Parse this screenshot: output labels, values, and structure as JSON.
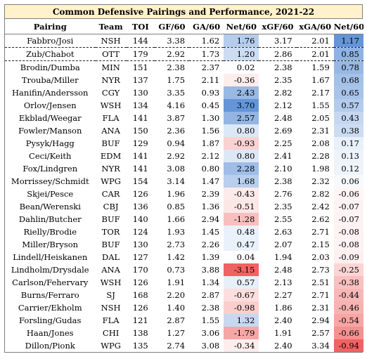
{
  "title": "Common Defensive Pairings and Performance, 2021-22",
  "columns": [
    "Pairing",
    "Team",
    "TOI",
    "GF/60",
    "GA/60",
    "Net/60",
    "xGF/60",
    "xGA/60",
    "Net/60"
  ],
  "colors": {
    "positive": "#5b8fd6",
    "negative": "#f05a5a",
    "neutral": "#ffffff",
    "title_bg": "#fff2cc"
  },
  "rows": [
    {
      "pairing": "Fabbro/Josi",
      "team": "NSH",
      "toi": "144",
      "gf": "3.38",
      "ga": "1.62",
      "net": "1.76",
      "xgf": "3.17",
      "xga": "2.01",
      "xnet": "1.17"
    },
    {
      "pairing": "Zub/Chabot",
      "team": "OTT",
      "toi": "179",
      "gf": "2.92",
      "ga": "1.73",
      "net": "1.20",
      "xgf": "2.86",
      "xga": "2.01",
      "xnet": "0.85"
    },
    {
      "pairing": "Brodin/Dumba",
      "team": "MIN",
      "toi": "151",
      "gf": "2.38",
      "ga": "2.37",
      "net": "0.02",
      "xgf": "2.38",
      "xga": "1.59",
      "xnet": "0.78"
    },
    {
      "pairing": "Trouba/Miller",
      "team": "NYR",
      "toi": "137",
      "gf": "1.75",
      "ga": "2.11",
      "net": "-0.36",
      "xgf": "2.35",
      "xga": "1.67",
      "xnet": "0.68"
    },
    {
      "pairing": "Hanifin/Andersson",
      "team": "CGY",
      "toi": "130",
      "gf": "3.35",
      "ga": "0.93",
      "net": "2.43",
      "xgf": "2.82",
      "xga": "2.17",
      "xnet": "0.65"
    },
    {
      "pairing": "Orlov/Jensen",
      "team": "WSH",
      "toi": "134",
      "gf": "4.16",
      "ga": "0.45",
      "net": "3.70",
      "xgf": "2.12",
      "xga": "1.55",
      "xnet": "0.57"
    },
    {
      "pairing": "Ekblad/Weegar",
      "team": "FLA",
      "toi": "141",
      "gf": "3.87",
      "ga": "1.30",
      "net": "2.57",
      "xgf": "2.48",
      "xga": "2.05",
      "xnet": "0.43"
    },
    {
      "pairing": "Fowler/Manson",
      "team": "ANA",
      "toi": "150",
      "gf": "2.36",
      "ga": "1.56",
      "net": "0.80",
      "xgf": "2.69",
      "xga": "2.31",
      "xnet": "0.38"
    },
    {
      "pairing": "Pysyk/Hagg",
      "team": "BUF",
      "toi": "129",
      "gf": "0.94",
      "ga": "1.87",
      "net": "-0.93",
      "xgf": "2.25",
      "xga": "2.08",
      "xnet": "0.17"
    },
    {
      "pairing": "Ceci/Keith",
      "team": "EDM",
      "toi": "141",
      "gf": "2.92",
      "ga": "2.12",
      "net": "0.80",
      "xgf": "2.41",
      "xga": "2.28",
      "xnet": "0.13"
    },
    {
      "pairing": "Fox/Lindgren",
      "team": "NYR",
      "toi": "141",
      "gf": "3.08",
      "ga": "0.80",
      "net": "2.28",
      "xgf": "2.10",
      "xga": "1.98",
      "xnet": "0.12"
    },
    {
      "pairing": "Morrissey/Schmidt",
      "team": "WPG",
      "toi": "154",
      "gf": "3.14",
      "ga": "1.47",
      "net": "1.68",
      "xgf": "2.38",
      "xga": "2.32",
      "xnet": "0.06"
    },
    {
      "pairing": "Skjei/Pesce",
      "team": "CAR",
      "toi": "126",
      "gf": "1.96",
      "ga": "2.39",
      "net": "-0.43",
      "xgf": "2.76",
      "xga": "2.82",
      "xnet": "-0.06"
    },
    {
      "pairing": "Bean/Werenski",
      "team": "CBJ",
      "toi": "136",
      "gf": "0.85",
      "ga": "1.36",
      "net": "-0.51",
      "xgf": "2.35",
      "xga": "2.42",
      "xnet": "-0.07"
    },
    {
      "pairing": "Dahlin/Butcher",
      "team": "BUF",
      "toi": "140",
      "gf": "1.66",
      "ga": "2.94",
      "net": "-1.28",
      "xgf": "2.55",
      "xga": "2.62",
      "xnet": "-0.07"
    },
    {
      "pairing": "Rielly/Brodie",
      "team": "TOR",
      "toi": "124",
      "gf": "1.93",
      "ga": "1.45",
      "net": "0.48",
      "xgf": "2.63",
      "xga": "2.71",
      "xnet": "-0.08"
    },
    {
      "pairing": "Miller/Bryson",
      "team": "BUF",
      "toi": "130",
      "gf": "2.73",
      "ga": "2.26",
      "net": "0.47",
      "xgf": "2.07",
      "xga": "2.15",
      "xnet": "-0.08"
    },
    {
      "pairing": "Lindell/Heiskanen",
      "team": "DAL",
      "toi": "127",
      "gf": "1.42",
      "ga": "1.39",
      "net": "0.04",
      "xgf": "1.94",
      "xga": "2.03",
      "xnet": "-0.09"
    },
    {
      "pairing": "Lindholm/Drysdale",
      "team": "ANA",
      "toi": "170",
      "gf": "0.73",
      "ga": "3.88",
      "net": "-3.15",
      "xgf": "2.48",
      "xga": "2.73",
      "xnet": "-0.25"
    },
    {
      "pairing": "Carlson/Fehervary",
      "team": "WSH",
      "toi": "126",
      "gf": "1.91",
      "ga": "1.34",
      "net": "0.57",
      "xgf": "2.13",
      "xga": "2.51",
      "xnet": "-0.38"
    },
    {
      "pairing": "Burns/Ferraro",
      "team": "SJ",
      "toi": "168",
      "gf": "2.20",
      "ga": "2.87",
      "net": "-0.67",
      "xgf": "2.27",
      "xga": "2.71",
      "xnet": "-0.44"
    },
    {
      "pairing": "Carrier/Ekholm",
      "team": "NSH",
      "toi": "126",
      "gf": "1.40",
      "ga": "2.38",
      "net": "-0.98",
      "xgf": "1.86",
      "xga": "2.31",
      "xnet": "-0.46"
    },
    {
      "pairing": "Forsling/Gudas",
      "team": "FLA",
      "toi": "121",
      "gf": "2.87",
      "ga": "1.55",
      "net": "1.32",
      "xgf": "2.40",
      "xga": "2.94",
      "xnet": "-0.54"
    },
    {
      "pairing": "Haan/Jones",
      "team": "CHI",
      "toi": "138",
      "gf": "1.27",
      "ga": "3.06",
      "net": "-1.79",
      "xgf": "1.91",
      "xga": "2.57",
      "xnet": "-0.66"
    },
    {
      "pairing": "Dillon/Pionk",
      "team": "WPG",
      "toi": "135",
      "gf": "2.74",
      "ga": "3.08",
      "net": "-0.34",
      "xgf": "2.40",
      "xga": "3.34",
      "xnet": "-0.94"
    }
  ]
}
